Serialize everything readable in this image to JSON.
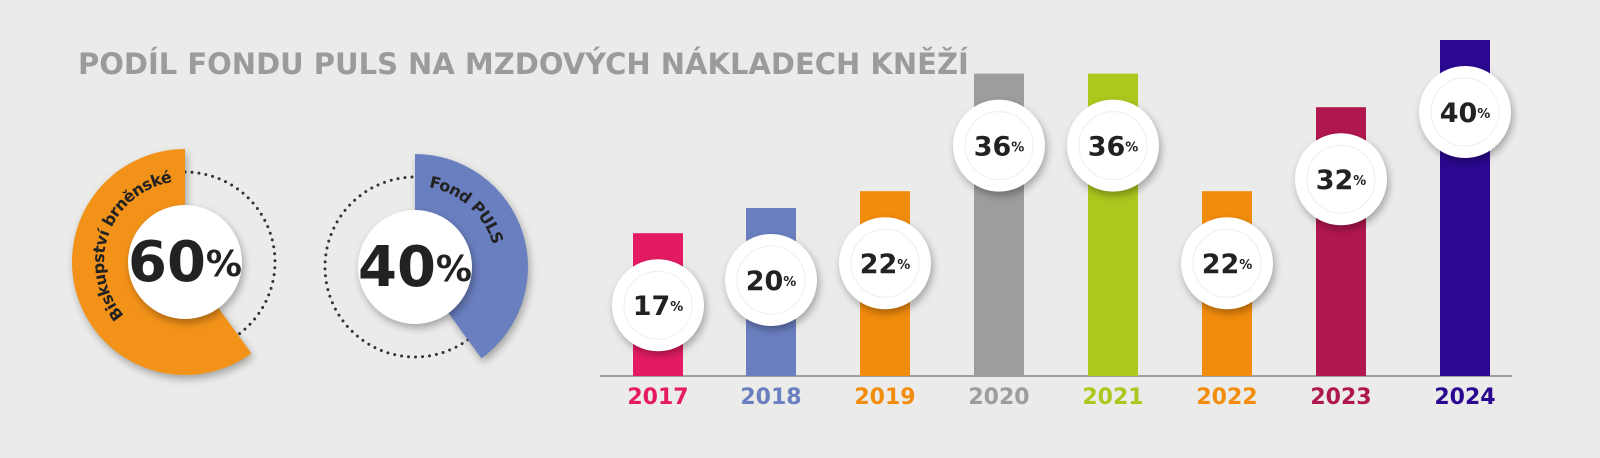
{
  "title": "PODÍL FONDU PULS NA MZDOVÝCH NÁKLADECH KNĚŽÍ",
  "chart_data": [
    {
      "type": "donut",
      "categories": [
        "Biskupství brněnské",
        "Fond PULS"
      ],
      "values": [
        60,
        40
      ],
      "value_labels": [
        "60%",
        "40%"
      ],
      "colors": [
        "#f39219",
        "#6a7fc0"
      ]
    },
    {
      "type": "bar",
      "categories": [
        "2017",
        "2018",
        "2019",
        "2020",
        "2021",
        "2022",
        "2023",
        "2024"
      ],
      "values": [
        17,
        20,
        22,
        36,
        36,
        22,
        32,
        40
      ],
      "value_labels": [
        "17%",
        "20%",
        "22%",
        "36%",
        "36%",
        "22%",
        "32%",
        "40%"
      ],
      "colors": [
        "#e41b63",
        "#6a7fc0",
        "#f28c0c",
        "#9d9d9c",
        "#acc81f",
        "#f28c0c",
        "#b0174f",
        "#2a0890"
      ]
    }
  ]
}
